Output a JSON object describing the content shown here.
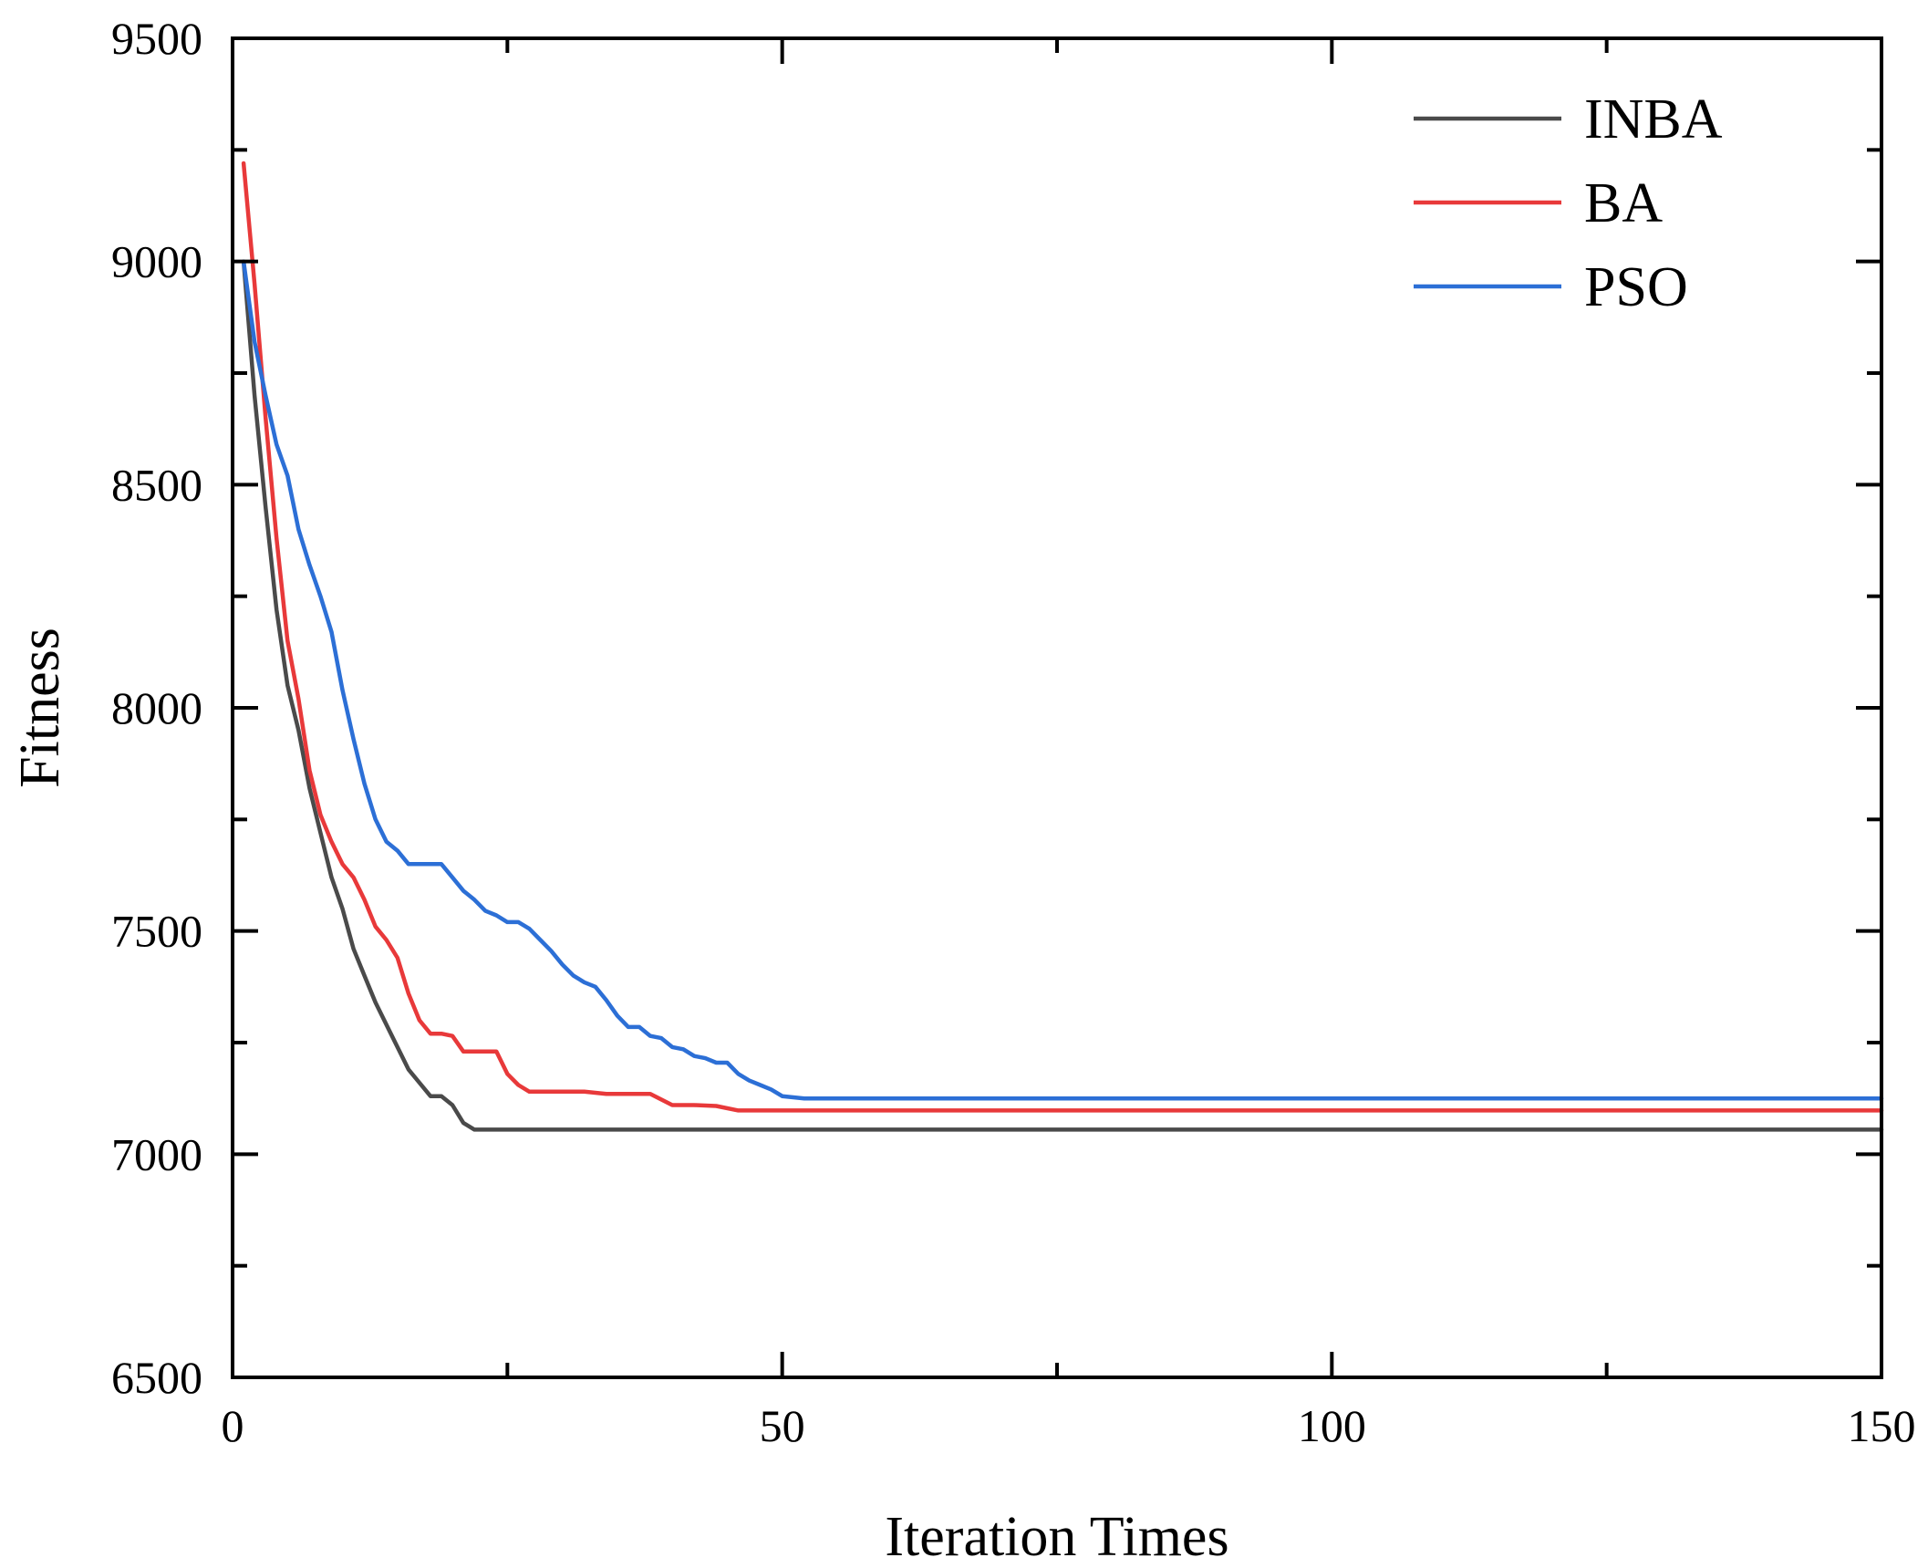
{
  "chart_data": {
    "type": "line",
    "title": "",
    "xlabel": "Iteration Times",
    "ylabel": "Fitness",
    "xlim": [
      0,
      150
    ],
    "ylim": [
      6500,
      9500
    ],
    "x_ticks": [
      0,
      50,
      100,
      150
    ],
    "y_ticks": [
      6500,
      7000,
      7500,
      8000,
      8500,
      9000,
      9500
    ],
    "x_tick_labels": [
      "0",
      "50",
      "100",
      "150"
    ],
    "y_tick_labels": [
      "6500",
      "7000",
      "7500",
      "8000",
      "8500",
      "9000",
      "9500"
    ],
    "grid": false,
    "legend_position": "top-right",
    "series": [
      {
        "name": "INBA",
        "color": "#4a4a4a",
        "x": [
          1,
          2,
          3,
          4,
          5,
          6,
          7,
          8,
          9,
          10,
          11,
          12,
          13,
          14,
          15,
          16,
          17,
          18,
          19,
          20,
          21,
          22,
          23,
          150
        ],
        "y": [
          9000,
          8700,
          8450,
          8220,
          8050,
          7950,
          7820,
          7720,
          7620,
          7550,
          7460,
          7400,
          7340,
          7290,
          7240,
          7190,
          7160,
          7130,
          7130,
          7110,
          7070,
          7055,
          7055,
          7055
        ]
      },
      {
        "name": "BA",
        "color": "#e8393a",
        "x": [
          1,
          2,
          3,
          4,
          5,
          6,
          7,
          8,
          9,
          10,
          11,
          12,
          13,
          14,
          15,
          16,
          17,
          18,
          19,
          20,
          21,
          22,
          23,
          24,
          25,
          26,
          27,
          28,
          30,
          32,
          34,
          36,
          38,
          40,
          42,
          44,
          46,
          150
        ],
        "y": [
          9220,
          8950,
          8650,
          8380,
          8150,
          8020,
          7860,
          7760,
          7700,
          7650,
          7620,
          7570,
          7510,
          7480,
          7440,
          7360,
          7300,
          7270,
          7270,
          7265,
          7230,
          7230,
          7230,
          7230,
          7180,
          7155,
          7140,
          7140,
          7140,
          7140,
          7135,
          7135,
          7135,
          7110,
          7110,
          7108,
          7098,
          7098
        ]
      },
      {
        "name": "PSO",
        "color": "#2c6fd6",
        "x": [
          1,
          2,
          3,
          4,
          5,
          6,
          7,
          8,
          9,
          10,
          11,
          12,
          13,
          14,
          15,
          16,
          17,
          18,
          19,
          20,
          21,
          22,
          23,
          24,
          25,
          26,
          27,
          28,
          29,
          30,
          31,
          32,
          33,
          34,
          35,
          36,
          37,
          38,
          39,
          40,
          41,
          42,
          43,
          44,
          45,
          46,
          47,
          48,
          49,
          50,
          52,
          150
        ],
        "y": [
          9000,
          8820,
          8700,
          8590,
          8520,
          8400,
          8320,
          8250,
          8170,
          8040,
          7930,
          7830,
          7750,
          7700,
          7680,
          7650,
          7650,
          7650,
          7650,
          7620,
          7590,
          7570,
          7545,
          7535,
          7520,
          7520,
          7505,
          7480,
          7455,
          7425,
          7400,
          7385,
          7375,
          7345,
          7310,
          7285,
          7285,
          7265,
          7260,
          7240,
          7235,
          7220,
          7215,
          7205,
          7205,
          7180,
          7165,
          7155,
          7145,
          7130,
          7125,
          7125
        ]
      }
    ]
  }
}
